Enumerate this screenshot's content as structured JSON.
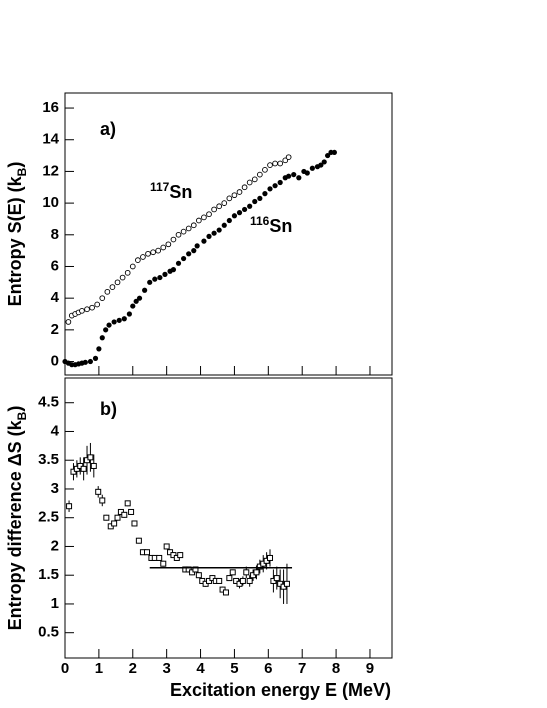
{
  "chart_data": [
    {
      "type": "scatter",
      "panel_label": "a)",
      "y_label": {
        "text": "Entropy S(E) (k",
        "sub": "B",
        "end": ")"
      },
      "xlim": [
        0,
        9.65
      ],
      "ylim": [
        -0.85,
        16.95
      ],
      "xticks": [
        0,
        1,
        2,
        3,
        4,
        5,
        6,
        7,
        8,
        9
      ],
      "yticks": [
        0,
        2,
        4,
        6,
        8,
        10,
        12,
        14,
        16
      ],
      "series": [
        {
          "mass": "117",
          "element": "Sn",
          "marker": "open-circle",
          "color": "#000000",
          "x": [
            0.1,
            0.2,
            0.3,
            0.4,
            0.5,
            0.65,
            0.8,
            0.95,
            1.1,
            1.25,
            1.4,
            1.55,
            1.7,
            1.85,
            2.0,
            2.15,
            2.3,
            2.45,
            2.6,
            2.75,
            2.9,
            3.05,
            3.2,
            3.35,
            3.5,
            3.65,
            3.8,
            3.95,
            4.1,
            4.25,
            4.4,
            4.55,
            4.7,
            4.85,
            5.0,
            5.15,
            5.3,
            5.45,
            5.6,
            5.75,
            5.9,
            6.05,
            6.2,
            6.35,
            6.5,
            6.6
          ],
          "values": [
            2.5,
            2.9,
            3.0,
            3.1,
            3.2,
            3.3,
            3.4,
            3.6,
            4.0,
            4.4,
            4.7,
            5.0,
            5.3,
            5.6,
            6.0,
            6.4,
            6.6,
            6.8,
            6.9,
            7.0,
            7.2,
            7.4,
            7.7,
            8.0,
            8.2,
            8.4,
            8.6,
            8.9,
            9.1,
            9.3,
            9.6,
            9.8,
            10.0,
            10.3,
            10.5,
            10.7,
            11.0,
            11.3,
            11.5,
            11.8,
            12.1,
            12.4,
            12.5,
            12.5,
            12.7,
            12.9
          ]
        },
        {
          "mass": "116",
          "element": "Sn",
          "marker": "filled-circle",
          "color": "#000000",
          "x": [
            0.0,
            0.1,
            0.2,
            0.3,
            0.4,
            0.5,
            0.6,
            0.75,
            0.9,
            1.0,
            1.1,
            1.2,
            1.3,
            1.45,
            1.6,
            1.75,
            1.9,
            2.0,
            2.1,
            2.2,
            2.35,
            2.5,
            2.65,
            2.8,
            2.95,
            3.1,
            3.2,
            3.35,
            3.5,
            3.65,
            3.8,
            3.9,
            4.1,
            4.25,
            4.4,
            4.55,
            4.7,
            4.85,
            5.0,
            5.15,
            5.3,
            5.45,
            5.6,
            5.75,
            5.9,
            6.05,
            6.2,
            6.35,
            6.5,
            6.6,
            6.75,
            6.9,
            7.05,
            7.15,
            7.3,
            7.45,
            7.55,
            7.65,
            7.75,
            7.85,
            7.95
          ],
          "values": [
            0.0,
            -0.1,
            -0.2,
            -0.2,
            -0.15,
            -0.1,
            -0.05,
            0.0,
            0.2,
            0.8,
            1.5,
            2.0,
            2.3,
            2.5,
            2.6,
            2.7,
            3.0,
            3.5,
            3.8,
            4.0,
            4.5,
            5.0,
            5.2,
            5.3,
            5.5,
            5.7,
            5.8,
            6.2,
            6.5,
            6.8,
            7.0,
            7.3,
            7.6,
            7.9,
            8.1,
            8.3,
            8.6,
            8.9,
            9.2,
            9.4,
            9.6,
            9.8,
            10.1,
            10.3,
            10.6,
            10.9,
            11.1,
            11.3,
            11.6,
            11.7,
            11.8,
            11.6,
            12.0,
            11.9,
            12.2,
            12.3,
            12.4,
            12.6,
            13.0,
            13.2,
            13.2
          ]
        }
      ]
    },
    {
      "type": "scatter",
      "panel_label": "b)",
      "y_label": {
        "text": "Entropy difference ΔS (k",
        "sub": "B",
        "end": ")"
      },
      "x_label": "Excitation energy E (MeV)",
      "xlim": [
        0,
        9.65
      ],
      "ylim": [
        0.06,
        4.93
      ],
      "xticks": [
        0,
        1,
        2,
        3,
        4,
        5,
        6,
        7,
        8,
        9
      ],
      "yticks": [
        0.5,
        1,
        1.5,
        2,
        2.5,
        3,
        3.5,
        4,
        4.5
      ],
      "series": [
        {
          "marker": "open-square",
          "color": "#000000",
          "x": [
            0.12,
            0.25,
            0.35,
            0.45,
            0.55,
            0.65,
            0.75,
            0.85,
            0.98,
            1.1,
            1.22,
            1.35,
            1.45,
            1.55,
            1.65,
            1.75,
            1.85,
            1.95,
            2.05,
            2.18,
            2.3,
            2.42,
            2.55,
            2.65,
            2.78,
            2.9,
            3.0,
            3.1,
            3.2,
            3.3,
            3.4,
            3.55,
            3.65,
            3.75,
            3.85,
            3.95,
            4.05,
            4.15,
            4.25,
            4.35,
            4.45,
            4.55,
            4.65,
            4.75,
            4.85,
            4.95,
            5.05,
            5.15,
            5.25,
            5.35,
            5.45,
            5.55,
            5.65,
            5.75,
            5.85,
            5.95,
            6.05,
            6.15,
            6.25,
            6.35,
            6.45,
            6.55
          ],
          "values": [
            2.7,
            3.3,
            3.35,
            3.4,
            3.35,
            3.5,
            3.55,
            3.4,
            2.95,
            2.8,
            2.5,
            2.35,
            2.4,
            2.5,
            2.6,
            2.55,
            2.75,
            2.6,
            2.4,
            2.1,
            1.9,
            1.9,
            1.8,
            1.8,
            1.8,
            1.7,
            2.0,
            1.9,
            1.85,
            1.8,
            1.85,
            1.6,
            1.6,
            1.55,
            1.6,
            1.5,
            1.4,
            1.35,
            1.4,
            1.45,
            1.4,
            1.4,
            1.25,
            1.2,
            1.45,
            1.55,
            1.4,
            1.35,
            1.4,
            1.55,
            1.4,
            1.5,
            1.55,
            1.65,
            1.7,
            1.75,
            1.8,
            1.4,
            1.45,
            1.35,
            1.3,
            1.35
          ],
          "errors": [
            0.1,
            0.15,
            0.15,
            0.15,
            0.2,
            0.25,
            0.25,
            0.2,
            0.1,
            0.1,
            0.05,
            0.05,
            0.05,
            0.05,
            0.05,
            0.05,
            0.05,
            0.05,
            0.05,
            0.05,
            0.05,
            0.05,
            0.05,
            0.05,
            0.05,
            0.05,
            0.05,
            0.05,
            0.05,
            0.05,
            0.05,
            0.05,
            0.05,
            0.05,
            0.05,
            0.05,
            0.05,
            0.05,
            0.05,
            0.05,
            0.05,
            0.05,
            0.05,
            0.05,
            0.05,
            0.05,
            0.05,
            0.08,
            0.08,
            0.1,
            0.1,
            0.1,
            0.12,
            0.12,
            0.15,
            0.15,
            0.15,
            0.2,
            0.2,
            0.25,
            0.3,
            0.35
          ]
        }
      ],
      "fit": {
        "x": [
          2.5,
          6.7
        ],
        "values": [
          1.63,
          1.63
        ]
      }
    }
  ]
}
